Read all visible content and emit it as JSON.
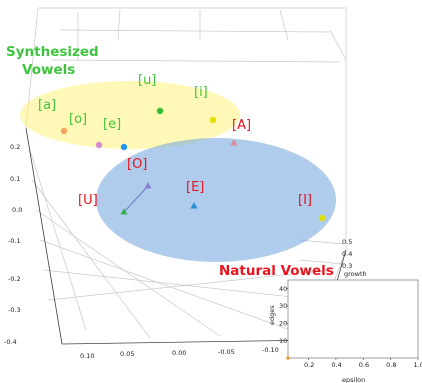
{
  "chart_data": [
    {
      "type": "scatter",
      "projection": "3d",
      "title": "",
      "groups": [
        {
          "name": "Synthesized Vowels",
          "color": "#fff27a",
          "points": [
            {
              "label": "[a]",
              "marker": "circle",
              "color": "#f4a261"
            },
            {
              "label": "[o]",
              "marker": "circle",
              "color": "#d98cd6"
            },
            {
              "label": "[e]",
              "marker": "circle",
              "color": "#2196f3"
            },
            {
              "label": "[u]",
              "marker": "circle",
              "color": "#32c032"
            },
            {
              "label": "[i]",
              "marker": "circle",
              "color": "#e8e000"
            }
          ]
        },
        {
          "name": "Natural Vowels",
          "color": "#6fa3dc",
          "points": [
            {
              "label": "[A]",
              "marker": "triangle",
              "color": "#d98c9a"
            },
            {
              "label": "[O]",
              "marker": "triangle",
              "color": "#8c7fd0"
            },
            {
              "label": "[E]",
              "marker": "triangle",
              "color": "#2a8fd9"
            },
            {
              "label": "[U]",
              "marker": "triangle",
              "color": "#38b060"
            },
            {
              "label": "[I]",
              "marker": "circle",
              "color": "#e0e000"
            }
          ]
        }
      ],
      "axes": {
        "z_ticks": [
          "0.2",
          "0.1",
          "0.0",
          "-0.1",
          "-0.2",
          "-0.3",
          "-0.4"
        ],
        "x_ticks": [
          "0.10",
          "0.05",
          "0.00",
          "-0.05",
          "-0.10"
        ],
        "y_ticks": [
          "0.5",
          "0.4",
          "0.3"
        ],
        "y_label": "growth"
      }
    },
    {
      "type": "scatter",
      "xlabel": "epsilon",
      "ylabel": "edges",
      "x_ticks": [
        "0.2",
        "0.4",
        "0.6",
        "0.8",
        "1.0"
      ],
      "y_ticks": [
        "10",
        "20",
        "30",
        "40"
      ],
      "xlim": [
        0.05,
        1.0
      ],
      "ylim": [
        0,
        45
      ],
      "points": [
        {
          "x": 0.05,
          "y": 0,
          "color": "#e8a040"
        }
      ]
    }
  ]
}
